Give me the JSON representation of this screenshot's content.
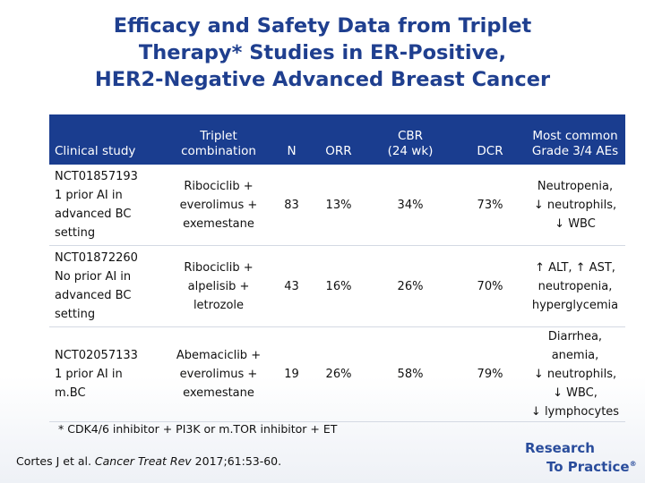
{
  "title": {
    "line1": "Efficacy and Safety Data from Triplet",
    "line2": "Therapy* Studies in ER-Positive,",
    "line3": "HER2-Negative Advanced Breast Cancer"
  },
  "table": {
    "headers": {
      "study": "Clinical study",
      "combination": "Triplet\ncombination",
      "n": "N",
      "orr": "ORR",
      "cbr": "CBR\n(24 wk)",
      "dcr": "DCR",
      "aes": "Most common\nGrade 3/4 AEs"
    },
    "rows": [
      {
        "study": "NCT01857193\n1 prior AI in\nadvanced BC\nsetting",
        "combination": "Ribociclib +\neverolimus +\nexemestane",
        "n": "83",
        "orr": "13%",
        "cbr": "34%",
        "dcr": "73%",
        "aes": "Neutropenia,\n↓ neutrophils,\n↓ WBC"
      },
      {
        "study": "NCT01872260\nNo prior AI in\nadvanced BC\nsetting",
        "combination": "Ribociclib +\nalpelisib +\nletrozole",
        "n": "43",
        "orr": "16%",
        "cbr": "26%",
        "dcr": "70%",
        "aes": "↑ ALT, ↑ AST,\nneutropenia,\nhyperglycemia"
      },
      {
        "study": "NCT02057133\n1 prior AI in\nm.BC",
        "combination": "Abemaciclib +\neverolimus +\nexemestane",
        "n": "19",
        "orr": "26%",
        "cbr": "58%",
        "dcr": "79%",
        "aes": "Diarrhea, anemia,\n↓ neutrophils,\n↓ WBC,\n↓ lymphocytes"
      }
    ]
  },
  "footnote": "* CDK4/6 inhibitor + PI3K or m.TOR inhibitor + ET",
  "citation": {
    "authors": "Cortes J et al. ",
    "journal": "Cancer Treat Rev",
    "details": " 2017;61:53-60."
  },
  "logo": {
    "line1": "Research",
    "line2": "To Practice",
    "mark": "®"
  },
  "colors": {
    "title": "#1f3f8f",
    "header_bg": "#1a3d8f",
    "logo": "#2a4d9c"
  }
}
